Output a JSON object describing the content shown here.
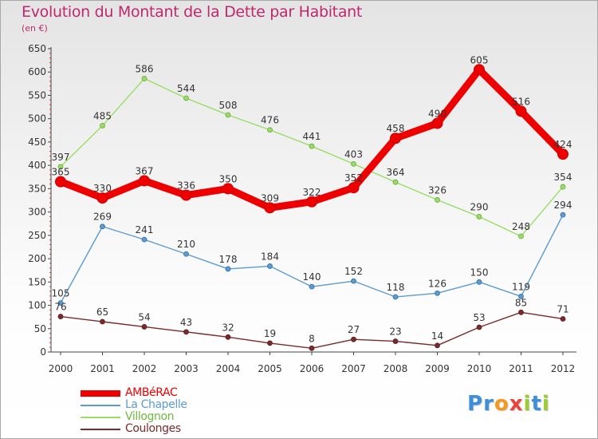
{
  "chart_data": {
    "type": "line",
    "title": "Evolution du Montant de la Dette par Habitant",
    "subtitle": "(en €)",
    "x": [
      "2000",
      "2001",
      "2002",
      "2003",
      "2004",
      "2005",
      "2006",
      "2007",
      "2008",
      "2009",
      "2010",
      "2011",
      "2012"
    ],
    "ylim": [
      0,
      650
    ],
    "yticks": [
      0,
      50,
      100,
      150,
      200,
      250,
      300,
      350,
      400,
      450,
      500,
      550,
      600,
      650
    ],
    "grid": false,
    "legend_position": "bottom-left",
    "series": [
      {
        "name": "AMBéRAC",
        "color": "#ee0000",
        "values": [
          365,
          330,
          367,
          336,
          350,
          309,
          322,
          352,
          458,
          490,
          605,
          516,
          424
        ]
      },
      {
        "name": "La Chapelle",
        "color": "#5b9bd0",
        "values": [
          105,
          269,
          241,
          210,
          178,
          184,
          140,
          152,
          118,
          126,
          150,
          119,
          294
        ]
      },
      {
        "name": "Villognon",
        "color": "#99dd66",
        "values": [
          397,
          485,
          586,
          544,
          508,
          476,
          441,
          403,
          364,
          326,
          290,
          248,
          354
        ]
      },
      {
        "name": "Coulonges",
        "color": "#7a2a2a",
        "values": [
          76,
          65,
          54,
          43,
          32,
          19,
          8,
          27,
          23,
          14,
          53,
          85,
          71
        ]
      }
    ]
  },
  "logo": {
    "letters": [
      {
        "ch": "P",
        "color": "#3c8fd8"
      },
      {
        "ch": "r",
        "color": "#3c8fd8"
      },
      {
        "ch": "o",
        "color": "#f39a1e"
      },
      {
        "ch": "x",
        "color": "#e8433c"
      },
      {
        "ch": "i",
        "color": "#9acd32"
      },
      {
        "ch": "t",
        "color": "#3c8fd8"
      },
      {
        "ch": "i",
        "color": "#9acd32"
      }
    ]
  }
}
